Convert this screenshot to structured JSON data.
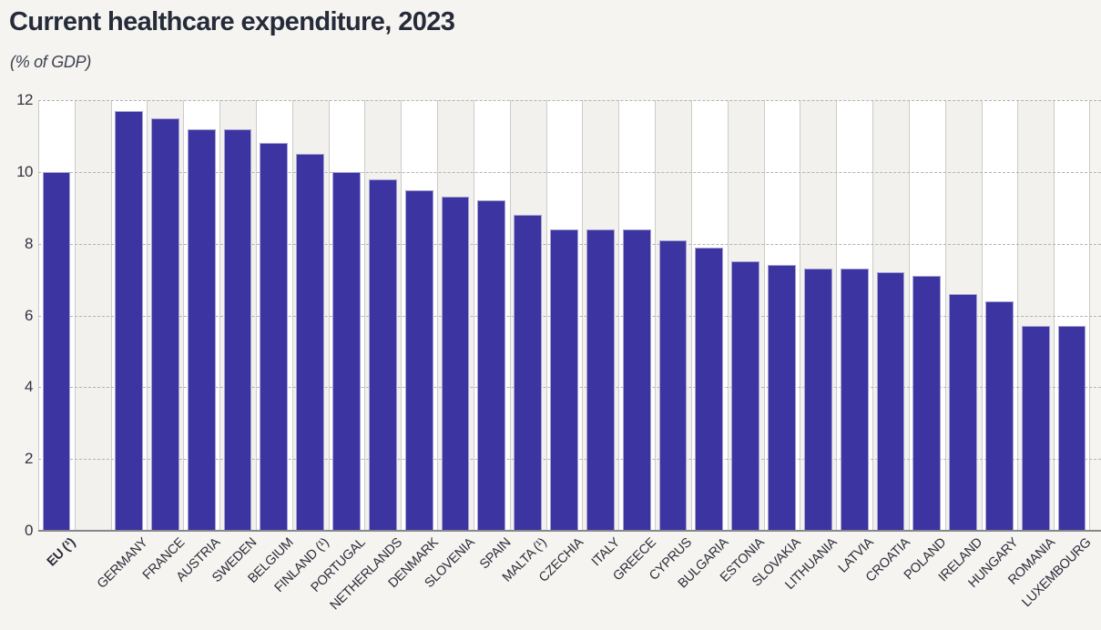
{
  "page": {
    "title": "Current healthcare expenditure, 2023",
    "subtitle": "(% of GDP)"
  },
  "colors": {
    "bar": "#3b34a1",
    "bar_border": "#a5a3d2",
    "title_text": "#262b3a",
    "page_background": "#f5f4f1",
    "column_white": "#ffffff",
    "column_gray": "#f2f1ee"
  },
  "chart_data": {
    "type": "bar",
    "title": "Current healthcare expenditure, 2023",
    "subtitle": "(% of GDP)",
    "ylabel": "% of GDP",
    "xlabel": "",
    "ylim": [
      0,
      12
    ],
    "yticks": [
      0,
      2,
      4,
      6,
      8,
      10,
      12
    ],
    "grid": "horizontal-dashed",
    "legend": "none",
    "bar_color": "#3b34a1",
    "first_bar_bold_label": true,
    "gap_after_first_bar": true,
    "categories": [
      "EU (¹)",
      "GERMANY",
      "FRANCE",
      "AUSTRIA",
      "SWEDEN",
      "BELGIUM",
      "FINLAND (¹)",
      "PORTUGAL",
      "NETHERLANDS",
      "DENMARK",
      "SLOVENIA",
      "SPAIN",
      "MALTA (¹)",
      "CZECHIA",
      "ITALY",
      "GREECE",
      "CYPRUS",
      "BULGARIA",
      "ESTONIA",
      "SLOVAKIA",
      "LITHUANIA",
      "LATVIA",
      "CROATIA",
      "POLAND",
      "IRELAND",
      "HUNGARY",
      "ROMANIA",
      "LUXEMBOURG"
    ],
    "values": [
      10.0,
      11.7,
      11.5,
      11.2,
      11.2,
      10.8,
      10.5,
      10.0,
      9.8,
      9.5,
      9.3,
      9.2,
      8.8,
      8.4,
      8.4,
      8.4,
      8.1,
      7.9,
      7.5,
      7.4,
      7.3,
      7.3,
      7.2,
      7.1,
      6.6,
      6.4,
      5.7,
      5.7
    ]
  }
}
